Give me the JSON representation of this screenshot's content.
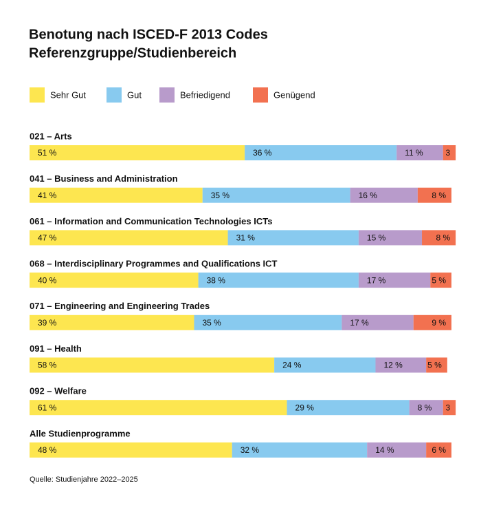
{
  "chart_data": {
    "type": "stacked_bar_horizontal",
    "title": [
      "Benotung nach ISCED-F 2013 Codes",
      "Referenzgruppe/Studienbereich"
    ],
    "categories": [
      "021 – Arts",
      "041 – Business and Administration",
      "061 – Information and Communication Technologies ICTs",
      "068 – Interdisciplinary Programmes and Qualifications ICT",
      "071  – Engineering and Engineering Trades",
      "091 – Health",
      "092 – Welfare",
      "Alle Studienprogramme"
    ],
    "series": [
      {
        "name": "Sehr Gut",
        "color": "#fde650",
        "values": [
          51,
          41,
          47,
          40,
          39,
          58,
          61,
          48
        ],
        "value_labels": [
          "51 %",
          "41 %",
          "47 %",
          "40 %",
          "39 %",
          "58 %",
          "61 %",
          "48 %"
        ]
      },
      {
        "name": "Gut",
        "color": "#88caef",
        "values": [
          36,
          35,
          31,
          38,
          35,
          24,
          29,
          32
        ],
        "value_labels": [
          "36 %",
          "35 %",
          "31 %",
          "38 %",
          "35 %",
          "24 %",
          "29 %",
          "32 %"
        ]
      },
      {
        "name": "Befriedigend",
        "color": "#b89bcb",
        "values": [
          11,
          16,
          15,
          17,
          17,
          12,
          8,
          14
        ],
        "value_labels": [
          "11 %",
          "16 %",
          "15 %",
          "17 %",
          "17 %",
          "12 %",
          "8 %",
          "14 %"
        ]
      },
      {
        "name": "Genügend",
        "color": "#f27150",
        "values": [
          3,
          8,
          8,
          5,
          9,
          5,
          3,
          6
        ],
        "value_labels": [
          "3",
          "8 %",
          "8 %",
          "5 %",
          "9 %",
          "5 %",
          "3",
          "6 %"
        ]
      }
    ],
    "source": "Quelle: Studienjahre 2022–2025"
  }
}
